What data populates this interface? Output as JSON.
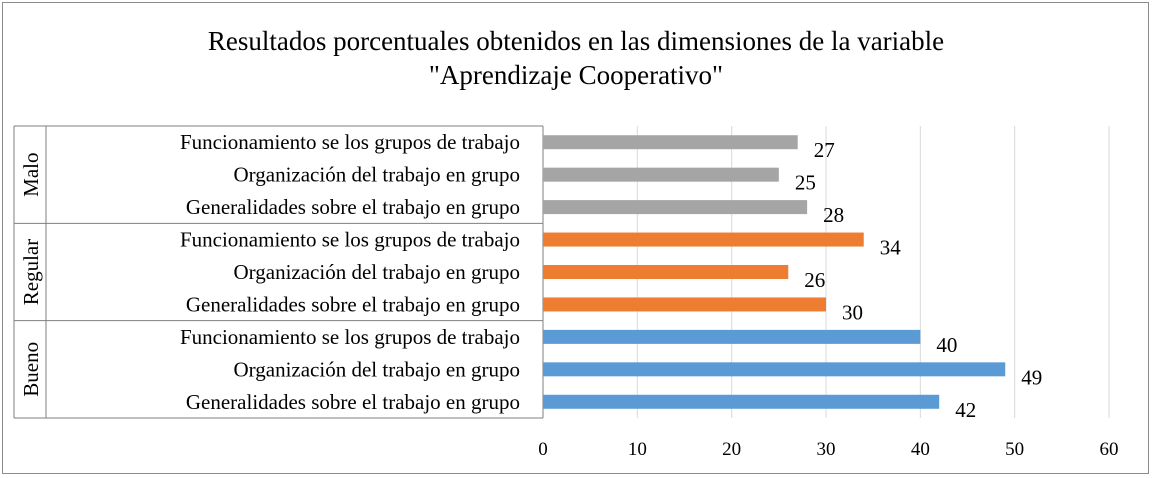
{
  "chart_data": {
    "type": "bar",
    "orientation": "horizontal",
    "title": "Resultados porcentuales obtenidos en las dimensiones de la variable",
    "subtitle": "\"Aprendizaje Cooperativo\"",
    "xlim": [
      0,
      60
    ],
    "xticks": [
      0,
      10,
      20,
      30,
      40,
      50,
      60
    ],
    "grid": true,
    "groups": [
      {
        "name": "Malo",
        "color": "#a5a5a5",
        "categories": [
          "Funcionamiento se los grupos de trabajo",
          "Organización del trabajo en grupo",
          "Generalidades sobre el trabajo en grupo"
        ],
        "values": [
          27,
          25,
          28
        ]
      },
      {
        "name": "Regular",
        "color": "#ed7d31",
        "categories": [
          "Funcionamiento se los grupos de trabajo",
          "Organización del trabajo en grupo",
          "Generalidades sobre el trabajo en grupo"
        ],
        "values": [
          34,
          26,
          30
        ]
      },
      {
        "name": "Bueno",
        "color": "#5b9bd5",
        "categories": [
          "Funcionamiento se los grupos de trabajo",
          "Organización del trabajo en grupo",
          "Generalidades sobre el trabajo en grupo"
        ],
        "values": [
          40,
          49,
          42
        ]
      }
    ]
  }
}
